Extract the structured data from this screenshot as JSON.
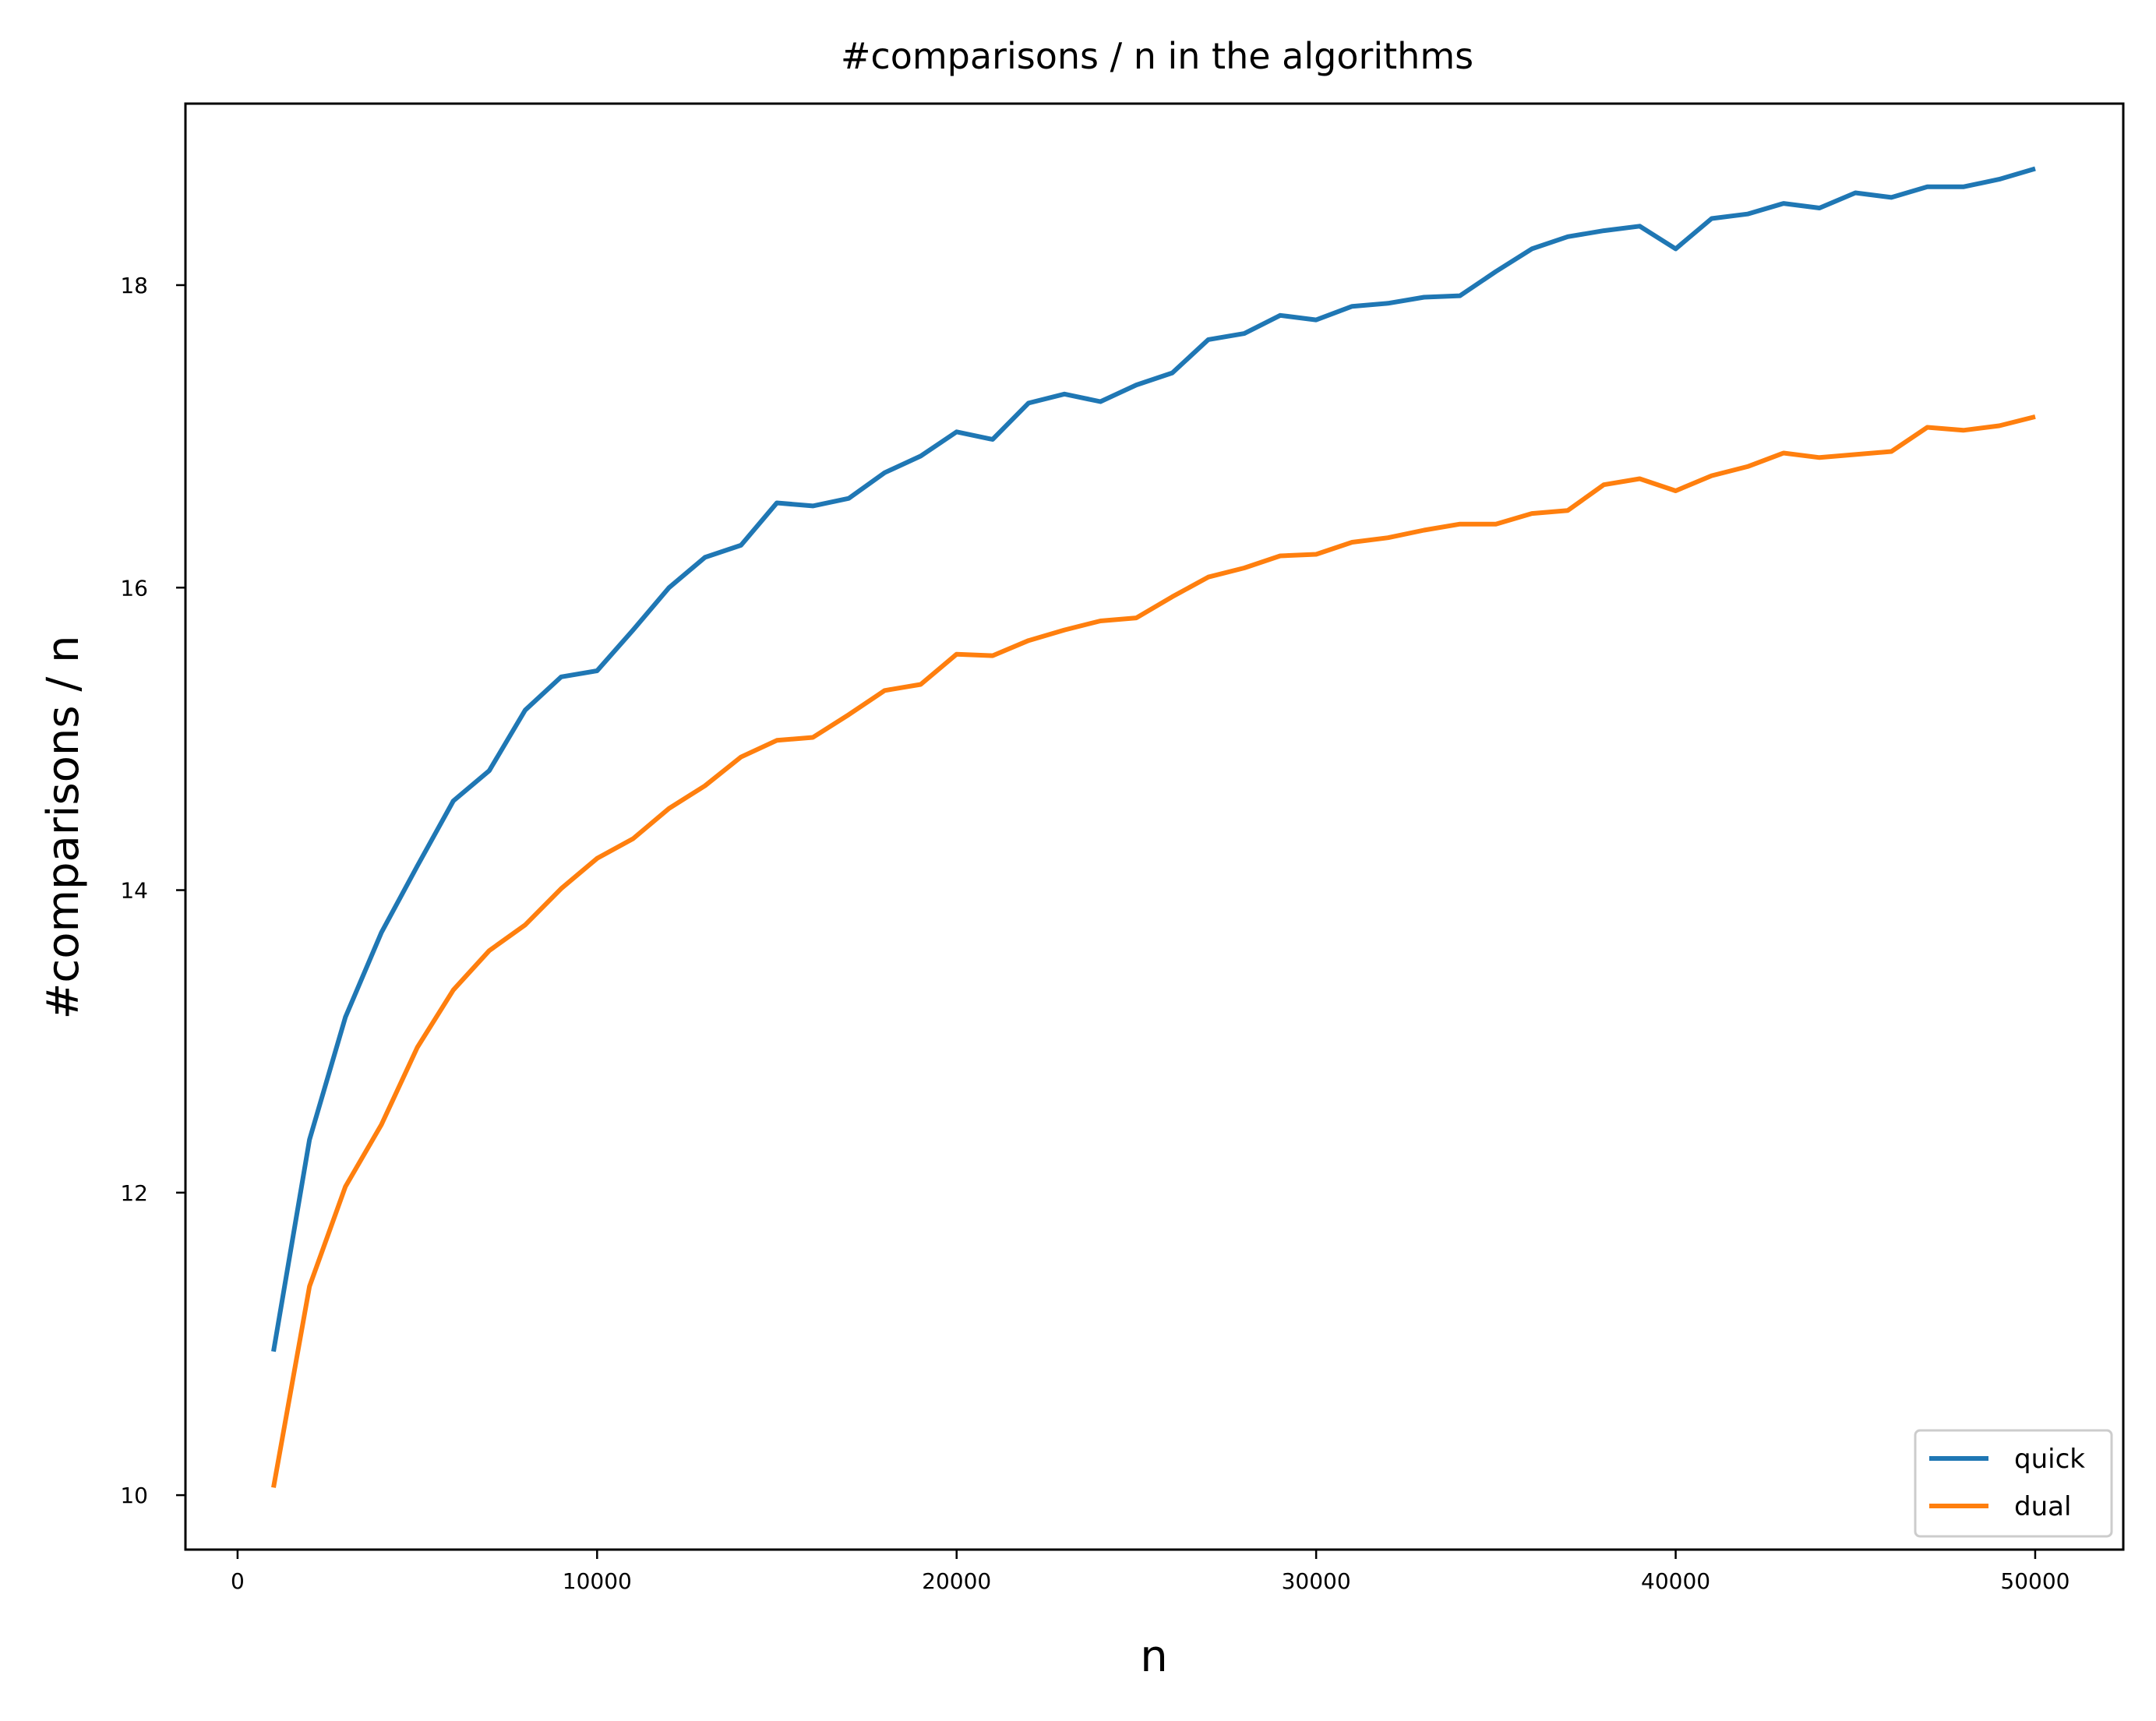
{
  "chart_data": {
    "type": "line",
    "title": "#comparisons / n in the algorithms",
    "xlabel": "n",
    "ylabel": "#comparisons / n",
    "xlim": [
      -1450,
      52450
    ],
    "ylim": [
      9.64,
      19.2
    ],
    "xticks": [
      0,
      10000,
      20000,
      30000,
      40000,
      50000
    ],
    "yticks": [
      10,
      12,
      14,
      16,
      18
    ],
    "grid": false,
    "legend_position": "lower-right",
    "x": [
      1000,
      2000,
      3000,
      4000,
      5000,
      6000,
      7000,
      8000,
      9000,
      10000,
      11000,
      12000,
      13000,
      14000,
      15000,
      16000,
      17000,
      18000,
      19000,
      20000,
      21000,
      22000,
      23000,
      24000,
      25000,
      26000,
      27000,
      28000,
      29000,
      30000,
      31000,
      32000,
      33000,
      34000,
      35000,
      36000,
      37000,
      38000,
      39000,
      40000,
      41000,
      42000,
      43000,
      44000,
      45000,
      46000,
      47000,
      48000,
      49000,
      50000
    ],
    "series": [
      {
        "name": "quick",
        "color": "#1f77b4",
        "values": [
          10.95,
          12.35,
          13.16,
          13.72,
          14.16,
          14.59,
          14.79,
          15.19,
          15.41,
          15.45,
          15.72,
          16.0,
          16.2,
          16.28,
          16.56,
          16.54,
          16.59,
          16.76,
          16.87,
          17.03,
          16.98,
          17.22,
          17.28,
          17.23,
          17.34,
          17.42,
          17.64,
          17.68,
          17.8,
          17.77,
          17.86,
          17.88,
          17.92,
          17.93,
          18.09,
          18.24,
          18.32,
          18.36,
          18.39,
          18.24,
          18.44,
          18.47,
          18.54,
          18.51,
          18.61,
          18.58,
          18.65,
          18.65,
          18.7,
          18.77
        ]
      },
      {
        "name": "dual",
        "color": "#ff7f0e",
        "values": [
          10.05,
          11.38,
          12.04,
          12.45,
          12.96,
          13.34,
          13.6,
          13.77,
          14.01,
          14.21,
          14.34,
          14.54,
          14.69,
          14.88,
          14.99,
          15.01,
          15.16,
          15.32,
          15.36,
          15.56,
          15.55,
          15.65,
          15.72,
          15.78,
          15.8,
          15.94,
          16.07,
          16.13,
          16.21,
          16.22,
          16.3,
          16.33,
          16.38,
          16.42,
          16.42,
          16.49,
          16.51,
          16.68,
          16.72,
          16.64,
          16.74,
          16.8,
          16.89,
          16.86,
          16.88,
          16.9,
          17.06,
          17.04,
          17.07,
          17.13
        ]
      }
    ]
  }
}
